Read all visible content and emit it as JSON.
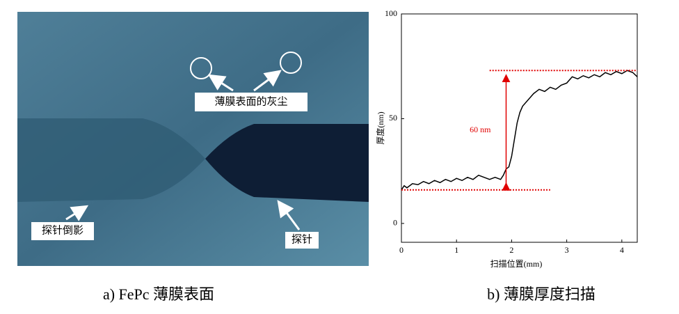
{
  "photo": {
    "annotations": [
      "薄膜表面的灰尘",
      "探针倒影",
      "探针"
    ]
  },
  "captions": [
    "a) FePc 薄膜表面",
    "b)  薄膜厚度扫描"
  ],
  "chart_data": {
    "type": "line",
    "x_label": "扫描位置(mm)",
    "y_label": "厚度(nm)",
    "x": [
      0,
      0.05,
      0.1,
      0.2,
      0.3,
      0.4,
      0.5,
      0.6,
      0.7,
      0.8,
      0.9,
      1.0,
      1.1,
      1.2,
      1.3,
      1.4,
      1.5,
      1.6,
      1.7,
      1.8,
      1.85,
      1.9,
      1.95,
      2.0,
      2.05,
      2.1,
      2.15,
      2.2,
      2.3,
      2.4,
      2.5,
      2.6,
      2.7,
      2.8,
      2.9,
      3.0,
      3.1,
      3.2,
      3.3,
      3.4,
      3.5,
      3.6,
      3.7,
      3.8,
      3.9,
      4.0,
      4.1,
      4.2,
      4.28
    ],
    "series": [
      {
        "color": "#000000",
        "values": [
          16,
          18,
          17,
          19,
          18.5,
          20,
          19,
          20.5,
          19.5,
          21,
          20,
          21.5,
          20.5,
          22,
          21,
          23,
          22,
          21,
          22,
          21,
          23,
          26,
          27,
          32,
          40,
          48,
          53,
          56,
          59,
          62,
          64,
          63,
          65,
          64,
          66,
          67,
          70,
          69,
          70.5,
          69.5,
          71,
          70,
          72,
          71,
          72.5,
          71.5,
          73,
          72,
          70
        ]
      }
    ],
    "xlim": [
      0,
      4.28
    ],
    "ylim": [
      -9,
      100
    ],
    "xticks": [
      0,
      1,
      2,
      3,
      4
    ],
    "yticks": [
      0,
      50,
      100
    ],
    "reference_lines": [
      {
        "value": 73,
        "x_range": [
          1.6,
          4.28
        ],
        "color": "#e00000"
      },
      {
        "value": 16,
        "x_range": [
          0,
          2.7
        ],
        "color": "#e00000"
      }
    ],
    "annotation": {
      "text": "60 nm",
      "x": 1.9,
      "y_range": [
        16,
        73
      ],
      "color": "#e00000"
    }
  }
}
